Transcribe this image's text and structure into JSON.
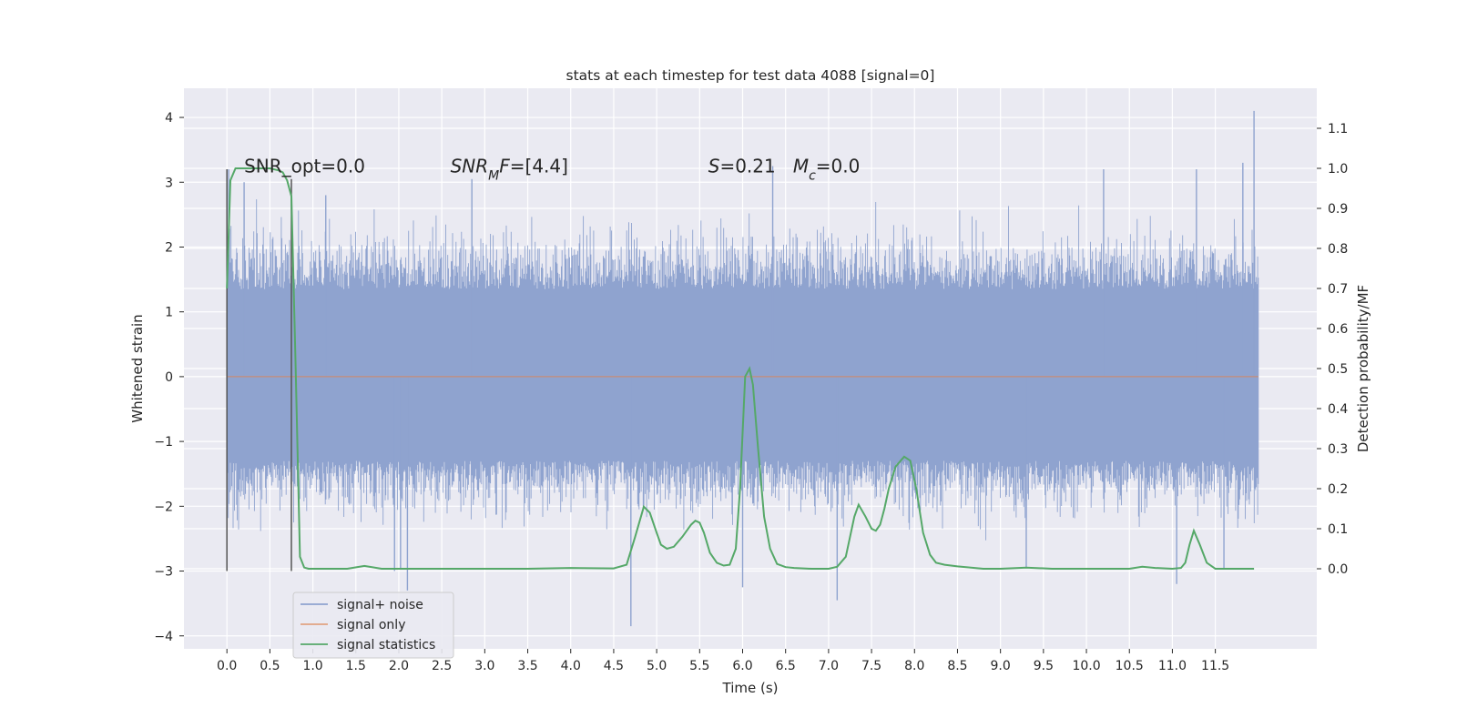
{
  "chart_data": {
    "type": "line",
    "title": "stats at each timestep for test data 4088 [signal=0]",
    "xlabel": "Time (s)",
    "ylabel": "Whitened strain",
    "y2label": "Detection probability/MF",
    "xlim": [
      -0.5,
      12.68
    ],
    "ylim": [
      -4.2,
      4.45
    ],
    "y2lim": [
      -0.2,
      1.2
    ],
    "xticks": [
      0.0,
      0.5,
      1.0,
      1.5,
      2.0,
      2.5,
      3.0,
      3.5,
      4.0,
      4.5,
      5.0,
      5.5,
      6.0,
      6.5,
      7.0,
      7.5,
      8.0,
      8.5,
      9.0,
      9.5,
      10.0,
      10.5,
      11.0,
      11.5
    ],
    "xtick_labels": [
      "0.0",
      "0.5",
      "1.0",
      "1.5",
      "2.0",
      "2.5",
      "3.0",
      "3.5",
      "4.0",
      "4.5",
      "5.0",
      "5.5",
      "6.0",
      "6.5",
      "7.0",
      "7.5",
      "8.0",
      "8.5",
      "9.0",
      "9.5",
      "10.0",
      "10.5",
      "11.0",
      "11.5"
    ],
    "yticks": [
      -4,
      -3,
      -2,
      -1,
      0,
      1,
      2,
      3,
      4
    ],
    "ytick_labels": [
      "−4",
      "−3",
      "−2",
      "−1",
      "0",
      "1",
      "2",
      "3",
      "4"
    ],
    "y2ticks": [
      0.0,
      0.1,
      0.2,
      0.3,
      0.4,
      0.5,
      0.6,
      0.7,
      0.8,
      0.9,
      1.0,
      1.1
    ],
    "y2tick_labels": [
      "0.0",
      "0.1",
      "0.2",
      "0.3",
      "0.4",
      "0.5",
      "0.6",
      "0.7",
      "0.8",
      "0.9",
      "1.0",
      "1.1"
    ],
    "grid": true,
    "legend_position": "lower-left",
    "background": "#eaeaf2",
    "annotations": [
      {
        "text": "SNR_opt=0.0",
        "x": 0.2,
        "y": 3.25
      },
      {
        "text": "SNR_MF=[4.4]",
        "x": 2.6,
        "y": 3.25
      },
      {
        "text": "S=0.21   M_c=0.0",
        "x": 5.6,
        "y": 3.25
      }
    ],
    "vlines": [
      {
        "x": 0.0,
        "y_from": -3.0,
        "y_to": 3.2,
        "color": "#555555"
      },
      {
        "x": 0.75,
        "y_from": -3.0,
        "y_to": 3.05,
        "color": "#555555"
      }
    ],
    "series": [
      {
        "name": "signal+ noise",
        "axis": "left",
        "color": "#8fa3cf",
        "x_range": [
          0.0,
          12.0
        ],
        "band": [
          -1.3,
          1.35
        ],
        "spikes": [
          {
            "x": 0.02,
            "y": 3.2
          },
          {
            "x": 0.2,
            "y": 3.0
          },
          {
            "x": 1.15,
            "y": 2.8
          },
          {
            "x": 1.95,
            "y": -3.0
          },
          {
            "x": 2.02,
            "y": -2.95
          },
          {
            "x": 2.1,
            "y": -3.3
          },
          {
            "x": 2.85,
            "y": 3.05
          },
          {
            "x": 4.7,
            "y": -3.85
          },
          {
            "x": 6.0,
            "y": -3.25
          },
          {
            "x": 6.35,
            "y": 3.25
          },
          {
            "x": 7.1,
            "y": -3.45
          },
          {
            "x": 9.3,
            "y": -2.95
          },
          {
            "x": 10.2,
            "y": 3.2
          },
          {
            "x": 11.05,
            "y": -3.2
          },
          {
            "x": 11.28,
            "y": 3.2
          },
          {
            "x": 11.6,
            "y": -2.95
          },
          {
            "x": 11.82,
            "y": 3.3
          },
          {
            "x": 11.95,
            "y": 4.1
          }
        ]
      },
      {
        "name": "signal only",
        "axis": "left",
        "color": "#dd8452",
        "x": [
          0.0,
          12.0
        ],
        "y": [
          0.0,
          0.0
        ]
      },
      {
        "name": "signal statistics",
        "axis": "right",
        "color": "#55a868",
        "x": [
          0.0,
          0.04,
          0.1,
          0.2,
          0.3,
          0.4,
          0.5,
          0.6,
          0.65,
          0.7,
          0.75,
          0.8,
          0.85,
          0.9,
          0.95,
          1.0,
          1.2,
          1.4,
          1.6,
          1.8,
          2.0,
          2.5,
          3.0,
          3.5,
          4.0,
          4.5,
          4.65,
          4.75,
          4.85,
          4.92,
          5.0,
          5.05,
          5.12,
          5.2,
          5.3,
          5.4,
          5.45,
          5.5,
          5.55,
          5.62,
          5.7,
          5.78,
          5.85,
          5.92,
          5.97,
          6.03,
          6.08,
          6.12,
          6.18,
          6.25,
          6.32,
          6.4,
          6.5,
          6.6,
          6.8,
          7.0,
          7.1,
          7.2,
          7.3,
          7.35,
          7.43,
          7.5,
          7.55,
          7.6,
          7.65,
          7.7,
          7.78,
          7.88,
          7.95,
          8.02,
          8.1,
          8.18,
          8.25,
          8.35,
          8.5,
          8.8,
          9.0,
          9.3,
          9.6,
          10.0,
          10.3,
          10.5,
          10.65,
          10.8,
          11.0,
          11.1,
          11.15,
          11.2,
          11.25,
          11.32,
          11.4,
          11.5,
          11.7,
          11.95
        ],
        "y": [
          0.7,
          0.97,
          1.0,
          1.0,
          1.0,
          1.0,
          1.0,
          0.995,
          0.99,
          0.97,
          0.93,
          0.5,
          0.03,
          0.003,
          0.0,
          0.0,
          0.0,
          0.0,
          0.007,
          0.0,
          0.0,
          0.0,
          0.0,
          0.0,
          0.002,
          0.001,
          0.01,
          0.08,
          0.155,
          0.14,
          0.09,
          0.06,
          0.05,
          0.055,
          0.08,
          0.11,
          0.12,
          0.115,
          0.09,
          0.04,
          0.015,
          0.008,
          0.01,
          0.05,
          0.2,
          0.48,
          0.5,
          0.46,
          0.3,
          0.13,
          0.05,
          0.012,
          0.004,
          0.002,
          0.0,
          0.0,
          0.005,
          0.03,
          0.13,
          0.16,
          0.13,
          0.1,
          0.095,
          0.11,
          0.15,
          0.2,
          0.255,
          0.28,
          0.27,
          0.2,
          0.09,
          0.035,
          0.015,
          0.01,
          0.006,
          0.0,
          0.0,
          0.003,
          0.0,
          0.0,
          0.0,
          0.0,
          0.005,
          0.002,
          0.0,
          0.002,
          0.015,
          0.06,
          0.095,
          0.06,
          0.015,
          0.0,
          0.0,
          0.0
        ]
      }
    ]
  }
}
